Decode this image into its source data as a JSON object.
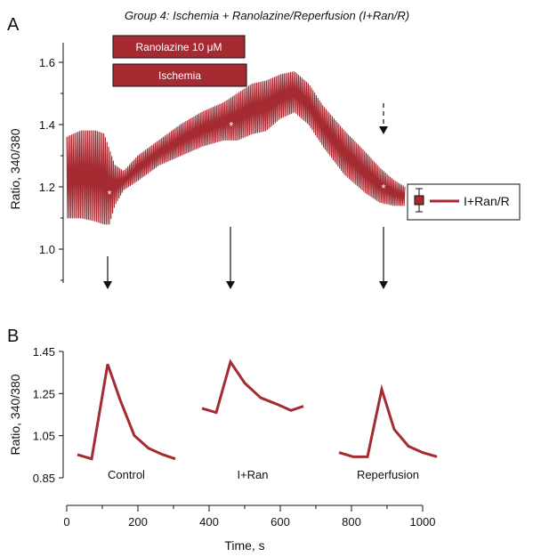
{
  "figure": {
    "title": "Group 4: Ischemia + Ranolazine/Reperfusion (I+Ran/R)",
    "panel_a_label": "A",
    "panel_b_label": "B"
  },
  "colors": {
    "series": "#a52a32",
    "bar": "#a52a32",
    "axis": "#111111",
    "marker": "#ffffff"
  },
  "bars": {
    "ranolazine": {
      "label": "Ranolazine 10 μM",
      "start": 130,
      "end": 500
    },
    "ischemia": {
      "label": "Ischemia",
      "start": 130,
      "end": 505
    }
  },
  "chart_data": [
    {
      "type": "line",
      "panel": "A",
      "title": "Group 4: Ischemia + Ranolazine/Reperfusion (I+Ran/R)",
      "ylabel": "Ratio, 340/380",
      "ylim": [
        0.9,
        1.68
      ],
      "yticks": [
        "1.0",
        "1.2",
        "1.4",
        "1.6"
      ],
      "xlim": [
        0,
        1000
      ],
      "legend": {
        "label": "I+Ran/R",
        "position": "right"
      },
      "series": [
        {
          "name": "I+Ran/R",
          "x": [
            0,
            40,
            80,
            105,
            120,
            135,
            160,
            200,
            260,
            320,
            380,
            440,
            480,
            520,
            560,
            600,
            640,
            680,
            720,
            780,
            840,
            880,
            920,
            950
          ],
          "upper": [
            1.36,
            1.38,
            1.38,
            1.37,
            1.32,
            1.27,
            1.25,
            1.3,
            1.35,
            1.4,
            1.44,
            1.47,
            1.5,
            1.53,
            1.54,
            1.56,
            1.57,
            1.53,
            1.46,
            1.38,
            1.31,
            1.26,
            1.22,
            1.2
          ],
          "lower": [
            1.1,
            1.1,
            1.09,
            1.08,
            1.08,
            1.14,
            1.19,
            1.22,
            1.27,
            1.3,
            1.33,
            1.35,
            1.35,
            1.37,
            1.38,
            1.42,
            1.44,
            1.4,
            1.33,
            1.24,
            1.18,
            1.15,
            1.14,
            1.14
          ]
        }
      ],
      "markers": [
        {
          "x": 120,
          "y": 1.18
        },
        {
          "x": 462,
          "y": 1.4
        },
        {
          "x": 890,
          "y": 1.2
        }
      ],
      "arrows": [
        {
          "x": 115,
          "style": "solid"
        },
        {
          "x": 460,
          "style": "solid"
        },
        {
          "x": 890,
          "style": "solid"
        },
        {
          "x": 890,
          "style": "dashed"
        }
      ]
    },
    {
      "type": "line",
      "panel": "B",
      "ylabel": "Ratio, 340/380",
      "ylim": [
        0.85,
        1.45
      ],
      "yticks": [
        "0.85",
        "1.05",
        "1.25",
        "1.45"
      ],
      "xlabel": "Time, s",
      "xlim": [
        0,
        1000
      ],
      "xticks": [
        "0",
        "200",
        "400",
        "600",
        "800",
        "1000"
      ],
      "segments": [
        {
          "label": "Control",
          "x": [
            30,
            70,
            115,
            150,
            190,
            230,
            270,
            305
          ],
          "y": [
            0.96,
            0.94,
            1.39,
            1.22,
            1.05,
            0.99,
            0.96,
            0.94
          ]
        },
        {
          "label": "I+Ran",
          "x": [
            380,
            420,
            460,
            500,
            545,
            590,
            630,
            665
          ],
          "y": [
            1.18,
            1.16,
            1.4,
            1.3,
            1.23,
            1.2,
            1.17,
            1.19
          ]
        },
        {
          "label": "Reperfusion",
          "x": [
            765,
            805,
            845,
            885,
            920,
            960,
            1000,
            1040
          ],
          "y": [
            0.97,
            0.95,
            0.95,
            1.27,
            1.08,
            1.0,
            0.97,
            0.95
          ]
        }
      ]
    }
  ]
}
